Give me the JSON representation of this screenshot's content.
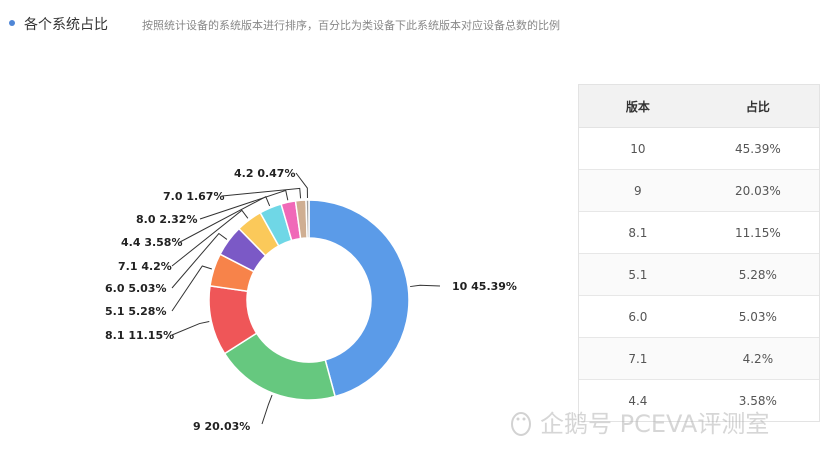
{
  "header": {
    "title": "各个系统占比",
    "subtitle": "按照统计设备的系统版本进行排序，百分比为类设备下此系统版本对应设备总数的比例"
  },
  "chart_data": {
    "type": "pie",
    "variant": "donut",
    "slices": [
      {
        "label": "10",
        "value": 45.39,
        "label_text": "10 45.39%",
        "color": "#5b9be8"
      },
      {
        "label": "9",
        "value": 20.03,
        "label_text": "9 20.03%",
        "color": "#66c87f"
      },
      {
        "label": "8.1",
        "value": 11.15,
        "label_text": "8.1 11.15%",
        "color": "#ef5658"
      },
      {
        "label": "5.1",
        "value": 5.28,
        "label_text": "5.1 5.28%",
        "color": "#f7834a"
      },
      {
        "label": "6.0",
        "value": 5.03,
        "label_text": "6.0 5.03%",
        "color": "#7b59c6"
      },
      {
        "label": "7.1",
        "value": 4.2,
        "label_text": "7.1 4.2%",
        "color": "#fbc95a"
      },
      {
        "label": "4.4",
        "value": 3.58,
        "label_text": "4.4 3.58%",
        "color": "#6fd7e6"
      },
      {
        "label": "8.0",
        "value": 2.32,
        "label_text": "8.0 2.32%",
        "color": "#f069b8"
      },
      {
        "label": "7.0",
        "value": 1.67,
        "label_text": "7.0 1.67%",
        "color": "#cfae92"
      },
      {
        "label": "4.2",
        "value": 0.47,
        "label_text": "4.2 0.47%",
        "color": "#9e9e9e"
      }
    ]
  },
  "table": {
    "headers": [
      "版本",
      "占比"
    ],
    "rows": [
      [
        "10",
        "45.39%"
      ],
      [
        "9",
        "20.03%"
      ],
      [
        "8.1",
        "11.15%"
      ],
      [
        "5.1",
        "5.28%"
      ],
      [
        "6.0",
        "5.03%"
      ],
      [
        "7.1",
        "4.2%"
      ],
      [
        "4.4",
        "3.58%"
      ]
    ]
  },
  "watermark": "企鹅号 PCEVA评测室"
}
